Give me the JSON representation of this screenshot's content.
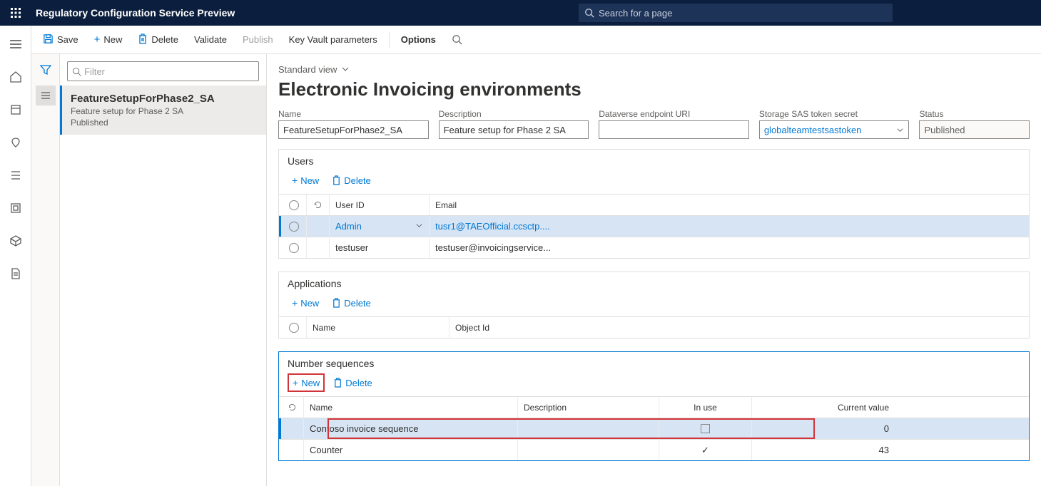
{
  "header": {
    "app_title": "Regulatory Configuration Service Preview",
    "search_placeholder": "Search for a page"
  },
  "commandbar": {
    "save": "Save",
    "new": "New",
    "delete": "Delete",
    "validate": "Validate",
    "publish": "Publish",
    "keyvault": "Key Vault parameters",
    "options": "Options"
  },
  "list": {
    "filter_placeholder": "Filter",
    "selected": {
      "title": "FeatureSetupForPhase2_SA",
      "subtitle": "Feature setup for Phase 2 SA",
      "status": "Published"
    }
  },
  "detail": {
    "view_label": "Standard view",
    "page_title": "Electronic Invoicing environments",
    "fields": {
      "name_label": "Name",
      "name_value": "FeatureSetupForPhase2_SA",
      "desc_label": "Description",
      "desc_value": "Feature setup for Phase 2 SA",
      "uri_label": "Dataverse endpoint URI",
      "uri_value": "",
      "sas_label": "Storage SAS token secret",
      "sas_value": "globalteamtestsastoken",
      "status_label": "Status",
      "status_value": "Published"
    }
  },
  "users": {
    "section_title": "Users",
    "new": "New",
    "delete": "Delete",
    "col_user": "User ID",
    "col_email": "Email",
    "rows": [
      {
        "user": "Admin",
        "email": "tusr1@TAEOfficial.ccsctp....",
        "selected": true
      },
      {
        "user": "testuser",
        "email": "testuser@invoicingservice...",
        "selected": false
      }
    ]
  },
  "apps": {
    "section_title": "Applications",
    "new": "New",
    "delete": "Delete",
    "col_name": "Name",
    "col_obj": "Object Id"
  },
  "ns": {
    "section_title": "Number sequences",
    "new": "New",
    "delete": "Delete",
    "col_name": "Name",
    "col_desc": "Description",
    "col_inuse": "In use",
    "col_val": "Current value",
    "rows": [
      {
        "name": "Contoso invoice sequence",
        "desc": "",
        "inuse": false,
        "value": "0",
        "selected": true,
        "highlight": true
      },
      {
        "name": "Counter",
        "desc": "",
        "inuse": true,
        "value": "43",
        "selected": false,
        "highlight": false
      }
    ]
  }
}
